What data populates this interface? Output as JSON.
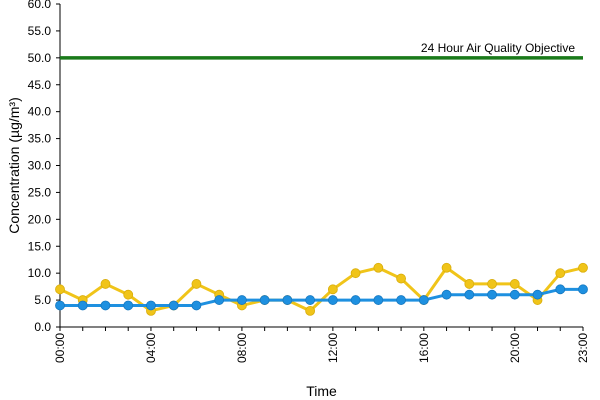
{
  "chart_data": {
    "type": "line",
    "title": "",
    "xlabel": "Time",
    "ylabel": "Concentration (µg/m³)",
    "ylim": [
      0,
      60
    ],
    "y_ticks": [
      "0.0",
      "5.0",
      "10.0",
      "15.0",
      "20.0",
      "25.0",
      "30.0",
      "35.0",
      "40.0",
      "45.0",
      "50.0",
      "55.0",
      "60.0"
    ],
    "x_tick_labels": [
      {
        "hour": 0,
        "label": "00:00"
      },
      {
        "hour": 4,
        "label": "04:00"
      },
      {
        "hour": 8,
        "label": "08:00"
      },
      {
        "hour": 12,
        "label": "12:00"
      },
      {
        "hour": 16,
        "label": "16:00"
      },
      {
        "hour": 20,
        "label": "20:00"
      },
      {
        "hour": 23,
        "label": "23:00"
      }
    ],
    "x": [
      0,
      1,
      2,
      3,
      4,
      5,
      6,
      7,
      8,
      9,
      10,
      11,
      12,
      13,
      14,
      15,
      16,
      17,
      18,
      19,
      20,
      21,
      22,
      23
    ],
    "grid": false,
    "legend": "none",
    "series": [
      {
        "color": "#f0c419",
        "values": [
          7,
          5,
          8,
          6,
          3,
          4,
          8,
          6,
          4,
          5,
          5,
          3,
          7,
          10,
          11,
          9,
          5,
          11,
          8,
          8,
          8,
          5,
          10,
          11
        ]
      },
      {
        "color": "#1e90e0",
        "values": [
          4,
          4,
          4,
          4,
          4,
          4,
          4,
          5,
          5,
          5,
          5,
          5,
          5,
          5,
          5,
          5,
          5,
          6,
          6,
          6,
          6,
          6,
          7,
          7
        ]
      }
    ],
    "reference_line": {
      "value": 50,
      "label": "24 Hour Air Quality Objective",
      "color": "#1a7a1a"
    }
  }
}
